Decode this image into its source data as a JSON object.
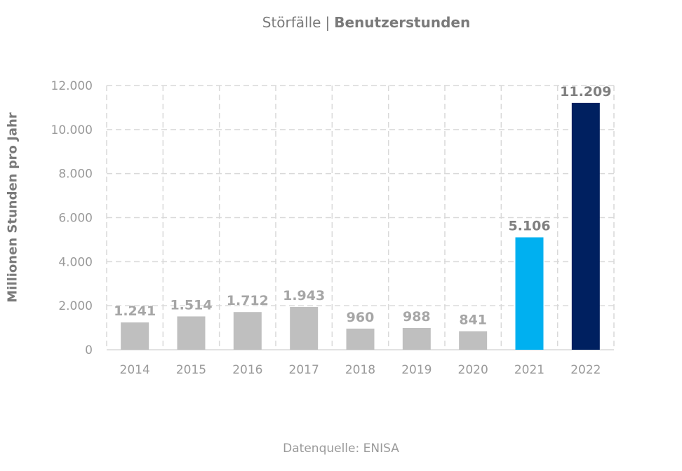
{
  "chart_data": {
    "type": "bar",
    "title_prefix": "Störfälle",
    "title_separator": "|",
    "title_bold": "Benutzerstunden",
    "ylabel": "Millionen Stunden pro Jahr",
    "source": "Datenquelle: ENISA",
    "categories": [
      "2014",
      "2015",
      "2016",
      "2017",
      "2018",
      "2019",
      "2020",
      "2021",
      "2022"
    ],
    "values": [
      1241,
      1514,
      1712,
      1943,
      960,
      988,
      841,
      5106,
      11209
    ],
    "value_labels": [
      "1.241",
      "1.514",
      "1.712",
      "1.943",
      "960",
      "988",
      "841",
      "5.106",
      "11.209"
    ],
    "bar_colors": [
      "#bfbfbf",
      "#bfbfbf",
      "#bfbfbf",
      "#bfbfbf",
      "#bfbfbf",
      "#bfbfbf",
      "#bfbfbf",
      "#00b0f0",
      "#002060"
    ],
    "label_colors": [
      "#a6a6a6",
      "#a6a6a6",
      "#a6a6a6",
      "#a6a6a6",
      "#a6a6a6",
      "#a6a6a6",
      "#a6a6a6",
      "#7f7f7f",
      "#7f7f7f"
    ],
    "ylim": [
      0,
      12000
    ],
    "yticks": [
      0,
      2000,
      4000,
      6000,
      8000,
      10000,
      12000
    ],
    "ytick_labels": [
      "0",
      "2.000",
      "4.000",
      "6.000",
      "8.000",
      "10.000",
      "12.000"
    ],
    "grid": true,
    "legend": "none"
  }
}
